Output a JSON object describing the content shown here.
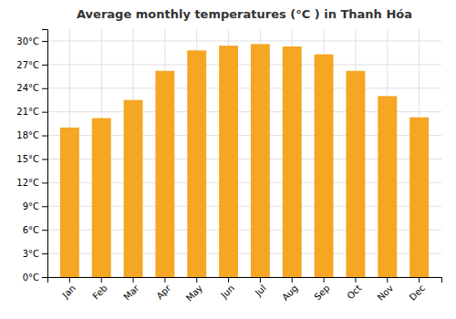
{
  "chart_data": {
    "type": "bar",
    "title": "Average monthly temperatures (°C ) in Thanh Hóa",
    "categories": [
      "Jan",
      "Feb",
      "Mar",
      "Apr",
      "May",
      "Jun",
      "Jul",
      "Aug",
      "Sep",
      "Oct",
      "Nov",
      "Dec"
    ],
    "values": [
      19.0,
      20.2,
      22.5,
      26.2,
      28.8,
      29.4,
      29.6,
      29.3,
      28.3,
      26.2,
      23.0,
      20.3
    ],
    "color": "#F5A623",
    "ylim": [
      0,
      31.5
    ],
    "yticks": [
      {
        "value": 0,
        "label": "0°C"
      },
      {
        "value": 3,
        "label": "3°C"
      },
      {
        "value": 6,
        "label": "6°C"
      },
      {
        "value": 9,
        "label": "9°C"
      },
      {
        "value": 12,
        "label": "12°C"
      },
      {
        "value": 15,
        "label": "15°C"
      },
      {
        "value": 18,
        "label": "18°C"
      },
      {
        "value": 21,
        "label": "21°C"
      },
      {
        "value": 24,
        "label": "24°C"
      },
      {
        "value": 27,
        "label": "27°C"
      },
      {
        "value": 30,
        "label": "30°C"
      }
    ],
    "grid": true
  }
}
